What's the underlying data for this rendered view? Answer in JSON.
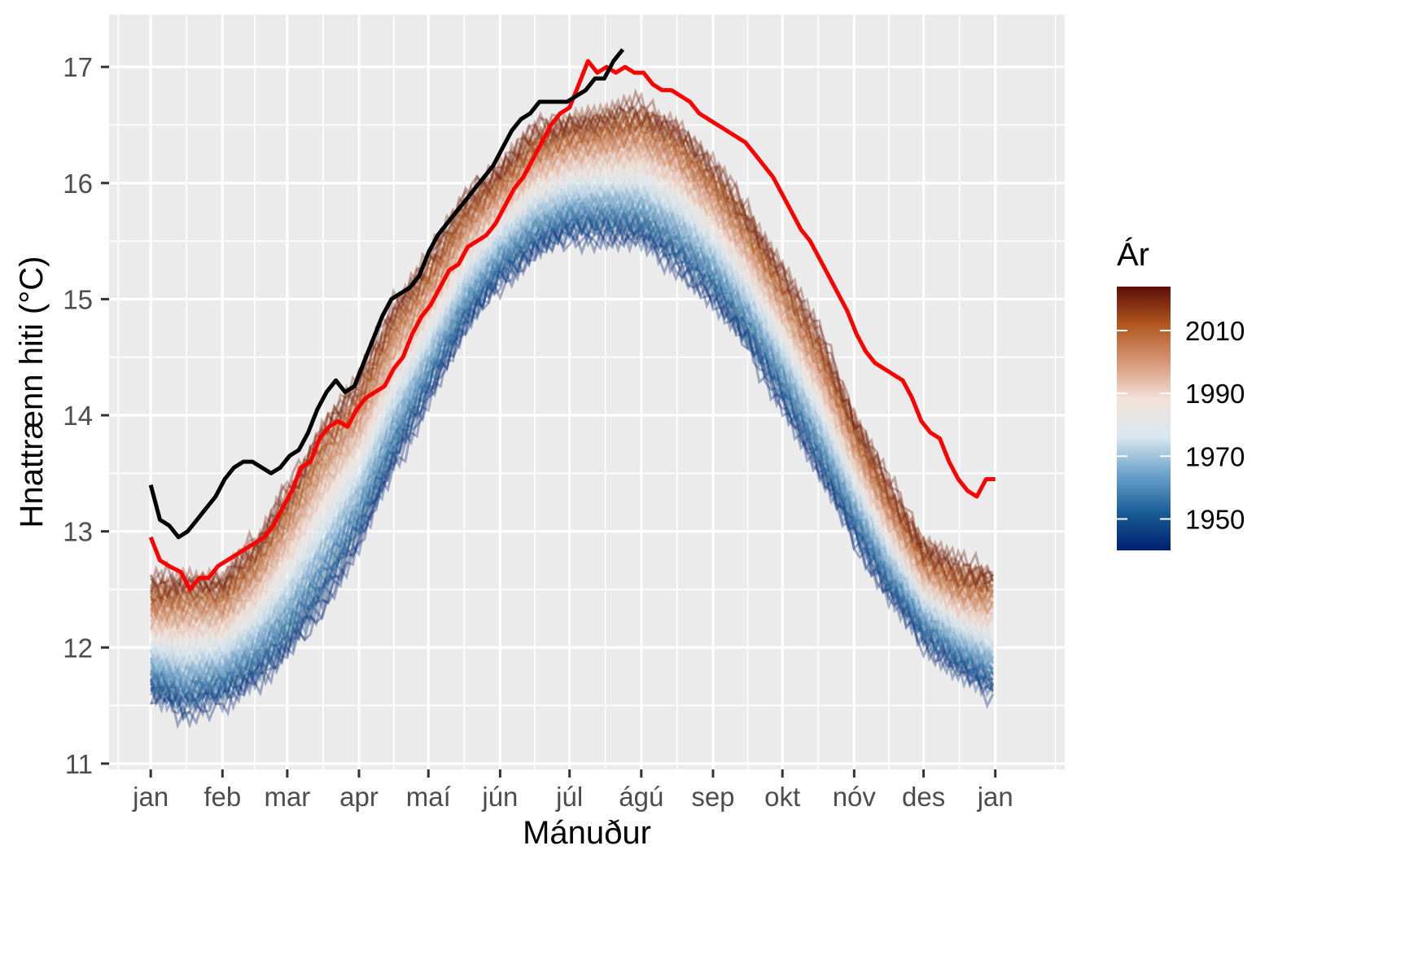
{
  "chart_data": {
    "type": "line",
    "xlabel": "Mánuður",
    "ylabel": "Hnattrænn hiti (°C)",
    "x_ticks": [
      "jan",
      "feb",
      "mar",
      "apr",
      "maí",
      "jún",
      "júl",
      "ágú",
      "sep",
      "okt",
      "nóv",
      "des",
      "jan"
    ],
    "x_tick_days": [
      1,
      32,
      60,
      91,
      121,
      152,
      182,
      213,
      244,
      274,
      305,
      335,
      366
    ],
    "xlim": [
      -17,
      396
    ],
    "ylim": [
      10.95,
      17.45
    ],
    "y_ticks": [
      11,
      12,
      13,
      14,
      15,
      16,
      17
    ],
    "grid": true,
    "panel_background": "#ebebeb",
    "legend": {
      "title": "Ár",
      "position": "right",
      "type": "colorbar",
      "range": [
        1940,
        2024
      ],
      "labels": [
        1950,
        1970,
        1990,
        2010
      ],
      "colors": [
        "#002070",
        "#1a5d96",
        "#6aa1c9",
        "#d9e7f0",
        "#f3e2da",
        "#d79677",
        "#b0571e",
        "#5c0d08"
      ]
    },
    "background_series": {
      "description": "one line per year, coloured by year",
      "years": [
        1940,
        2022
      ],
      "opacity": 0.35,
      "x_days": [
        1,
        15,
        32,
        46,
        60,
        75,
        91,
        106,
        121,
        137,
        152,
        167,
        182,
        198,
        213,
        228,
        244,
        259,
        274,
        290,
        305,
        320,
        335,
        350,
        365
      ],
      "early_years_values": [
        11.6,
        11.45,
        11.55,
        11.7,
        11.95,
        12.35,
        12.9,
        13.55,
        14.15,
        14.75,
        15.15,
        15.4,
        15.55,
        15.55,
        15.5,
        15.3,
        15.0,
        14.6,
        14.1,
        13.5,
        12.95,
        12.45,
        12.05,
        11.8,
        11.6
      ],
      "late_years_values": [
        12.55,
        12.6,
        12.6,
        12.9,
        13.35,
        13.9,
        14.3,
        14.95,
        15.35,
        15.85,
        16.15,
        16.45,
        16.55,
        16.6,
        16.65,
        16.5,
        16.15,
        15.75,
        15.25,
        14.7,
        14.0,
        13.4,
        12.9,
        12.7,
        12.65
      ]
    },
    "series": [
      {
        "color": "#ff0000",
        "x": [
          1,
          5,
          9,
          14,
          18,
          22,
          26,
          30,
          34,
          38,
          42,
          46,
          50,
          54,
          58,
          62,
          66,
          70,
          74,
          78,
          82,
          86,
          90,
          94,
          98,
          102,
          106,
          110,
          114,
          118,
          122,
          126,
          130,
          134,
          138,
          142,
          146,
          150,
          154,
          158,
          162,
          166,
          170,
          174,
          178,
          182,
          186,
          190,
          194,
          198,
          202,
          206,
          210,
          214,
          218,
          222,
          226,
          230,
          234,
          238,
          242,
          246,
          250,
          254,
          258,
          262,
          266,
          270,
          274,
          278,
          282,
          286,
          290,
          294,
          298,
          302,
          306,
          310,
          314,
          318,
          322,
          326,
          330,
          334,
          338,
          342,
          346,
          350,
          354,
          358,
          362,
          366
        ],
        "y": [
          12.95,
          12.75,
          12.7,
          12.65,
          12.5,
          12.6,
          12.6,
          12.7,
          12.75,
          12.8,
          12.85,
          12.9,
          12.95,
          13.05,
          13.2,
          13.35,
          13.55,
          13.6,
          13.8,
          13.9,
          13.95,
          13.9,
          14.05,
          14.15,
          14.2,
          14.25,
          14.4,
          14.5,
          14.7,
          14.85,
          14.95,
          15.1,
          15.25,
          15.3,
          15.45,
          15.5,
          15.55,
          15.65,
          15.8,
          15.95,
          16.05,
          16.2,
          16.35,
          16.5,
          16.6,
          16.65,
          16.85,
          17.05,
          16.95,
          17.0,
          16.95,
          17.0,
          16.95,
          16.95,
          16.85,
          16.8,
          16.8,
          16.75,
          16.7,
          16.6,
          16.55,
          16.5,
          16.45,
          16.4,
          16.35,
          16.25,
          16.15,
          16.05,
          15.9,
          15.75,
          15.6,
          15.5,
          15.35,
          15.2,
          15.05,
          14.9,
          14.7,
          14.55,
          14.45,
          14.4,
          14.35,
          14.3,
          14.15,
          13.95,
          13.85,
          13.8,
          13.6,
          13.45,
          13.35,
          13.3,
          13.45,
          13.45
        ]
      },
      {
        "color": "#000000",
        "x": [
          1,
          5,
          9,
          13,
          17,
          21,
          25,
          29,
          33,
          37,
          41,
          45,
          49,
          53,
          57,
          61,
          65,
          69,
          73,
          77,
          81,
          85,
          89,
          93,
          97,
          101,
          105,
          109,
          113,
          117,
          121,
          125,
          129,
          133,
          137,
          141,
          145,
          149,
          153,
          157,
          161,
          165,
          169,
          173,
          177,
          181,
          185,
          189,
          193,
          197,
          201,
          205
        ],
        "y": [
          13.4,
          13.1,
          13.05,
          12.95,
          13.0,
          13.1,
          13.2,
          13.3,
          13.45,
          13.55,
          13.6,
          13.6,
          13.55,
          13.5,
          13.55,
          13.65,
          13.7,
          13.85,
          14.05,
          14.2,
          14.3,
          14.2,
          14.25,
          14.45,
          14.65,
          14.85,
          15.0,
          15.05,
          15.1,
          15.2,
          15.4,
          15.55,
          15.65,
          15.75,
          15.85,
          15.95,
          16.05,
          16.15,
          16.3,
          16.45,
          16.55,
          16.6,
          16.7,
          16.7,
          16.7,
          16.7,
          16.75,
          16.8,
          16.9,
          16.9,
          17.05,
          17.15
        ]
      }
    ]
  }
}
